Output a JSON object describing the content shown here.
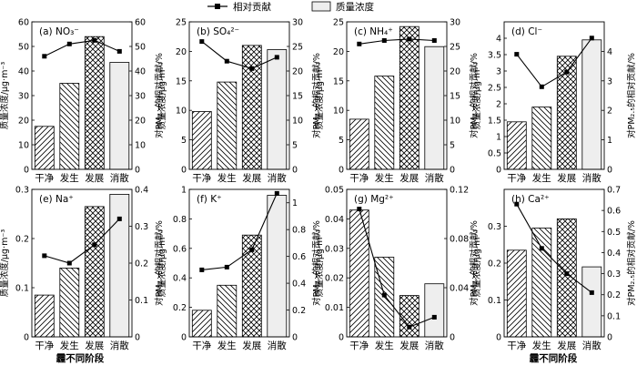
{
  "legend": {
    "line_label": "相对贡献",
    "bar_label": "质量浓度"
  },
  "x_title": "霾不同阶段",
  "y_left_title": "质量浓度/μg·m⁻³",
  "y_right_title": "对PM₂.₅的相对贡献/%",
  "chart_data": [
    {
      "type": "bar",
      "panel_label": "(a) NO₃⁻",
      "categories": [
        "干净",
        "发生",
        "发展",
        "消散"
      ],
      "bar_values": [
        17.5,
        35,
        54,
        43.5
      ],
      "line_values": [
        46,
        51,
        52.5,
        48
      ],
      "ylim_left": [
        0,
        60
      ],
      "yticks_left": [
        0,
        10,
        20,
        30,
        40,
        50,
        60
      ],
      "ylim_right": [
        0,
        60
      ],
      "yticks_right": [
        0,
        10,
        20,
        30,
        40,
        50,
        60
      ]
    },
    {
      "type": "bar",
      "panel_label": "(b) SO₄²⁻",
      "categories": [
        "干净",
        "发生",
        "发展",
        "消散"
      ],
      "bar_values": [
        9.8,
        14.8,
        21,
        20.3
      ],
      "line_values": [
        26,
        22,
        20.5,
        22.8
      ],
      "ylim_left": [
        0,
        25
      ],
      "yticks_left": [
        0,
        5,
        10,
        15,
        20,
        25
      ],
      "ylim_right": [
        0,
        30
      ],
      "yticks_right": [
        0,
        5,
        10,
        15,
        20,
        25,
        30
      ]
    },
    {
      "type": "bar",
      "panel_label": "(c) NH₄⁺",
      "categories": [
        "干净",
        "发生",
        "发展",
        "消散"
      ],
      "bar_values": [
        8.5,
        15.8,
        24.2,
        20.8
      ],
      "line_values": [
        25.5,
        26.2,
        26.5,
        26.2
      ],
      "ylim_left": [
        0,
        25
      ],
      "yticks_left": [
        0,
        5,
        10,
        15,
        20,
        25
      ],
      "ylim_right": [
        0,
        30
      ],
      "yticks_right": [
        0,
        5,
        10,
        15,
        20,
        25,
        30
      ]
    },
    {
      "type": "bar",
      "panel_label": "(d) Cl⁻",
      "categories": [
        "干净",
        "发生",
        "发展",
        "消散"
      ],
      "bar_values": [
        1.45,
        1.9,
        3.45,
        3.95
      ],
      "line_values": [
        3.9,
        2.8,
        3.3,
        4.45
      ],
      "ylim_left": [
        0,
        4.5
      ],
      "yticks_left": [
        0,
        0.5,
        1,
        1.5,
        2,
        2.5,
        3,
        3.5,
        4
      ],
      "ylim_right": [
        0,
        5
      ],
      "yticks_right": [
        0,
        1,
        2,
        3,
        4
      ]
    },
    {
      "type": "bar",
      "panel_label": "(e) Na⁺",
      "categories": [
        "干净",
        "发生",
        "发展",
        "消散"
      ],
      "bar_values": [
        0.085,
        0.14,
        0.265,
        0.29
      ],
      "line_values": [
        0.22,
        0.2,
        0.25,
        0.32
      ],
      "ylim_left": [
        0,
        0.3
      ],
      "yticks_left": [
        0,
        0.1,
        0.2,
        0.3
      ],
      "ylim_right": [
        0,
        0.4
      ],
      "yticks_right": [
        0,
        0.1,
        0.2,
        0.3,
        0.4
      ]
    },
    {
      "type": "bar",
      "panel_label": "(f) K⁺",
      "categories": [
        "干净",
        "发生",
        "发展",
        "消散"
      ],
      "bar_values": [
        0.18,
        0.35,
        0.69,
        0.96
      ],
      "line_values": [
        0.5,
        0.52,
        0.65,
        1.07
      ],
      "ylim_left": [
        0,
        1.0
      ],
      "yticks_left": [
        0,
        0.2,
        0.4,
        0.6,
        0.8,
        1.0
      ],
      "ylim_right": [
        0,
        1.1
      ],
      "yticks_right": [
        0,
        0.2,
        0.4,
        0.6,
        0.8,
        1.0
      ]
    },
    {
      "type": "bar",
      "panel_label": "(g) Mg²⁺",
      "categories": [
        "干净",
        "发生",
        "发展",
        "消散"
      ],
      "bar_values": [
        0.043,
        0.027,
        0.014,
        0.018
      ],
      "line_values": [
        0.104,
        0.034,
        0.008,
        0.016
      ],
      "ylim_left": [
        0,
        0.05
      ],
      "yticks_left": [
        0,
        0.01,
        0.02,
        0.03,
        0.04,
        0.05
      ],
      "ylim_right": [
        0,
        0.12
      ],
      "yticks_right": [
        0,
        0.04,
        0.08,
        0.12
      ]
    },
    {
      "type": "bar",
      "panel_label": "(h) Ca²⁺",
      "categories": [
        "干净",
        "发生",
        "发展",
        "消散"
      ],
      "bar_values": [
        0.235,
        0.295,
        0.32,
        0.19
      ],
      "line_values": [
        0.63,
        0.42,
        0.3,
        0.21
      ],
      "ylim_left": [
        0,
        0.4
      ],
      "yticks_left": [
        0,
        0.1,
        0.2,
        0.3
      ],
      "ylim_right": [
        0,
        0.7
      ],
      "yticks_right": [
        0,
        0.1,
        0.2,
        0.3,
        0.4,
        0.5,
        0.6,
        0.7
      ]
    }
  ]
}
